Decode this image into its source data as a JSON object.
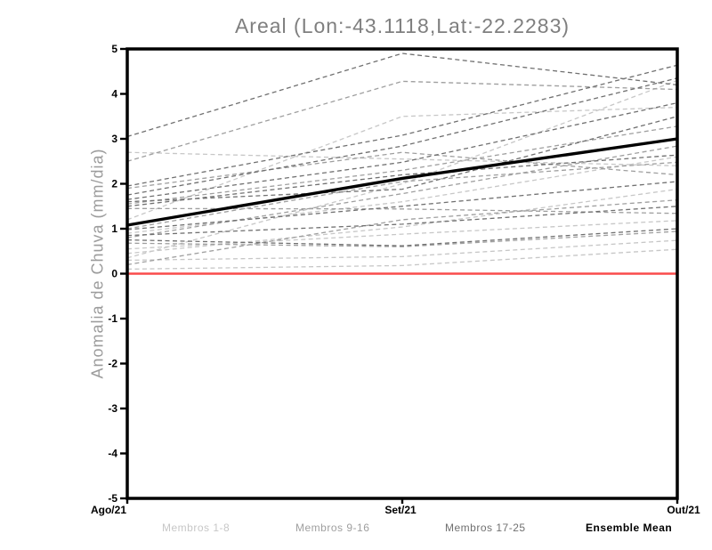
{
  "chart_data": {
    "type": "line",
    "title": "Areal (Lon:-43.1118,Lat:-22.2283)",
    "ylabel": "Anomalia de Chuva (mm/dia)",
    "xlabel": "",
    "categories": [
      "Ago/21",
      "Set/21",
      "Out/21"
    ],
    "ylim": [
      -5,
      5
    ],
    "yticks": [
      5,
      4,
      3,
      2,
      1,
      0,
      -1,
      -2,
      -3,
      -4,
      -5
    ],
    "grid": false,
    "legend_position": "bottom",
    "zero_line": {
      "value": 0,
      "color": "#fa4b4b"
    },
    "series": [
      {
        "name": "Membros 1-8",
        "style": "dashed",
        "color": "#c7c7c7",
        "members": [
          [
            0.1,
            0.18,
            0.54
          ],
          [
            0.3,
            0.38,
            0.74
          ],
          [
            0.45,
            1.04,
            1.88
          ],
          [
            0.55,
            0.88,
            1.18
          ],
          [
            2.7,
            2.55,
            2.4
          ],
          [
            0.9,
            1.6,
            2.6
          ],
          [
            0.35,
            2.0,
            4.3
          ],
          [
            1.2,
            3.5,
            3.7
          ]
        ]
      },
      {
        "name": "Membros 9-16",
        "style": "dashed",
        "color": "#9f9f9f",
        "members": [
          [
            2.5,
            4.28,
            4.1
          ],
          [
            1.9,
            2.7,
            2.2
          ],
          [
            1.55,
            2.3,
            3.28
          ],
          [
            1.45,
            1.44,
            1.34
          ],
          [
            0.8,
            1.78,
            2.84
          ],
          [
            0.68,
            0.6,
            0.94
          ],
          [
            1.0,
            2.05,
            2.48
          ],
          [
            0.2,
            1.2,
            1.64
          ]
        ]
      },
      {
        "name": "Membros 17-25",
        "style": "dashed",
        "color": "#707070",
        "members": [
          [
            3.05,
            4.9,
            4.2
          ],
          [
            1.95,
            3.08,
            4.64
          ],
          [
            1.75,
            2.84,
            4.35
          ],
          [
            1.65,
            2.48,
            3.8
          ],
          [
            1.6,
            1.88,
            3.5
          ],
          [
            1.5,
            2.2,
            2.64
          ],
          [
            0.98,
            1.5,
            2.05
          ],
          [
            0.85,
            1.1,
            1.5
          ],
          [
            0.75,
            0.62,
            1.0
          ]
        ]
      },
      {
        "name": "Ensemble Mean",
        "style": "solid",
        "color": "#000000",
        "values": [
          1.08,
          2.12,
          3.0
        ]
      }
    ],
    "colors": {
      "frame": "#000000",
      "tick_label": "#000000",
      "title": "#7f7f7f",
      "ylabel": "#9c9c9c",
      "background": "#ffffff"
    }
  }
}
